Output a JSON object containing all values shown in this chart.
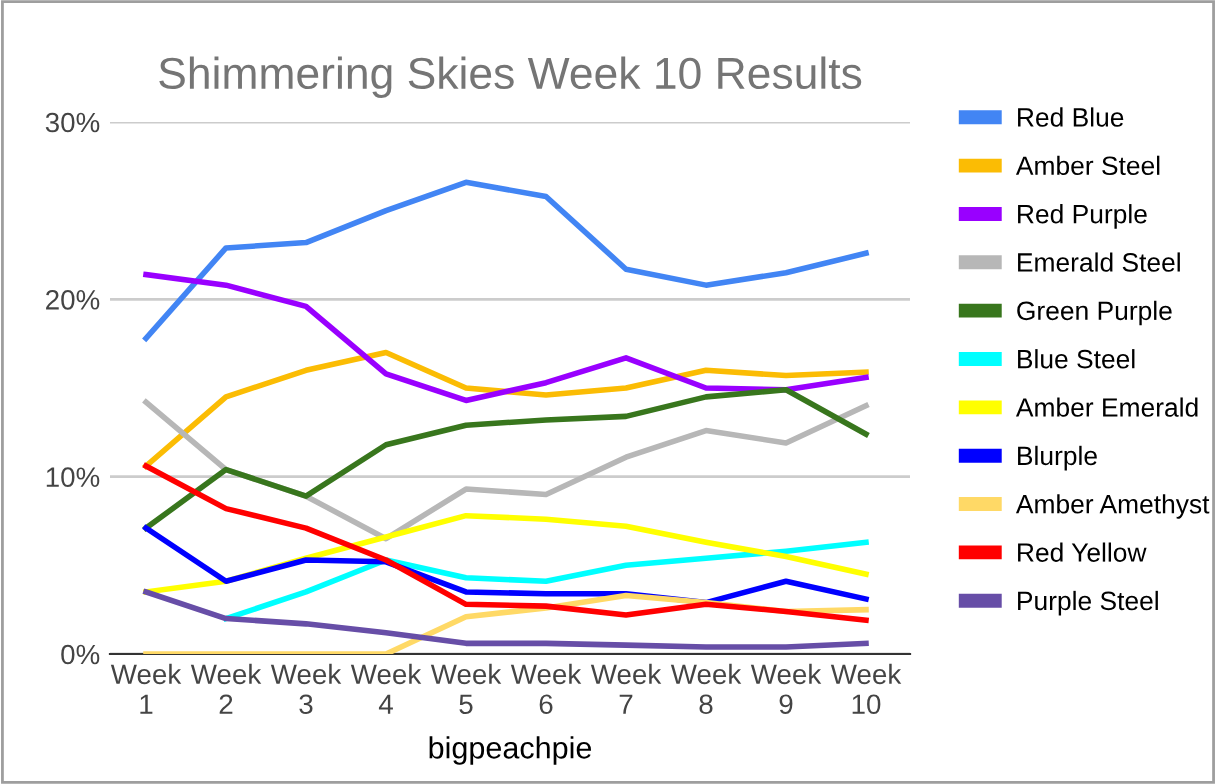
{
  "chart_data": {
    "type": "line",
    "title": "Shimmering Skies Week 10 Results",
    "xlabel": "bigpeachpie",
    "categories": [
      "Week\n1",
      "Week\n2",
      "Week\n3",
      "Week\n4",
      "Week\n5",
      "Week\n6",
      "Week\n7",
      "Week\n8",
      "Week\n9",
      "Week\n10"
    ],
    "ylim": [
      0,
      30
    ],
    "yticks": [
      {
        "value": 0,
        "label": "0%"
      },
      {
        "value": 10,
        "label": "10%"
      },
      {
        "value": 20,
        "label": "20%"
      },
      {
        "value": 30,
        "label": "30%"
      }
    ],
    "grid": "y",
    "legend": "right",
    "marker": "none",
    "line_style": "solid",
    "series": [
      {
        "name": "Red Blue",
        "color": "#4285f4",
        "values": [
          17.8,
          22.9,
          23.2,
          25.0,
          26.6,
          25.8,
          21.7,
          20.8,
          21.5,
          22.6
        ]
      },
      {
        "name": "Amber Steel",
        "color": "#fbbc04",
        "values": [
          10.6,
          14.5,
          16.0,
          17.0,
          15.0,
          14.6,
          15.0,
          16.0,
          15.7,
          15.9
        ]
      },
      {
        "name": "Red Purple",
        "color": "#9900ff",
        "values": [
          21.4,
          20.8,
          19.6,
          15.8,
          14.3,
          15.3,
          16.7,
          15.0,
          14.9,
          15.6
        ]
      },
      {
        "name": "Emerald Steel",
        "color": "#b7b7b7",
        "values": [
          14.2,
          10.4,
          8.9,
          6.5,
          9.3,
          9.0,
          11.1,
          12.6,
          11.9,
          14.0
        ]
      },
      {
        "name": "Green Purple",
        "color": "#38761d",
        "values": [
          7.1,
          10.4,
          8.9,
          11.8,
          12.9,
          13.2,
          13.4,
          14.5,
          14.9,
          12.4
        ]
      },
      {
        "name": "Blue Steel",
        "color": "#00ffff",
        "values": [
          null,
          2.0,
          3.5,
          5.3,
          4.3,
          4.1,
          5.0,
          5.4,
          5.8,
          6.3
        ]
      },
      {
        "name": "Amber Emerald",
        "color": "#ffff00",
        "values": [
          3.5,
          4.1,
          5.4,
          6.6,
          7.8,
          7.6,
          7.2,
          6.3,
          5.5,
          4.5
        ]
      },
      {
        "name": "Blurple",
        "color": "#0000ff",
        "values": [
          7.1,
          4.1,
          5.3,
          5.2,
          3.5,
          3.4,
          3.4,
          2.9,
          4.1,
          3.1
        ]
      },
      {
        "name": "Amber Amethyst",
        "color": "#ffd966",
        "values": [
          0,
          0,
          0,
          0,
          2.1,
          2.6,
          3.3,
          2.9,
          2.4,
          2.5
        ]
      },
      {
        "name": "Red Yellow",
        "color": "#ff0000",
        "values": [
          10.6,
          8.2,
          7.1,
          5.3,
          2.8,
          2.7,
          2.2,
          2.8,
          2.4,
          1.9
        ]
      },
      {
        "name": "Purple Steel",
        "color": "#674ea7",
        "values": [
          3.5,
          2.0,
          1.7,
          1.2,
          0.6,
          0.6,
          0.5,
          0.4,
          0.4,
          0.6
        ]
      }
    ]
  }
}
